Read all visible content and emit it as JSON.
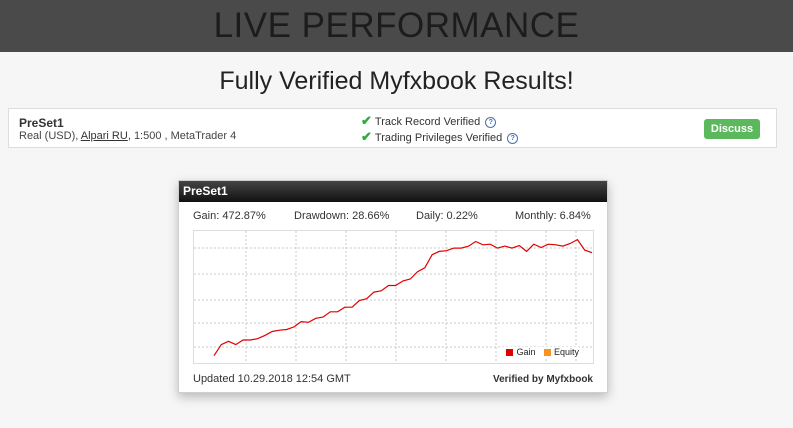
{
  "header": {
    "title": "LIVE PERFORMANCE"
  },
  "subtitle": "Fully Verified Myfxbook Results!",
  "account": {
    "name": "PreSet1",
    "type": "Real (USD),",
    "broker": "Alpari RU",
    "leverage_platform": ", 1:500 , MetaTrader 4",
    "verifications": [
      "Track Record Verified",
      "Trading Privileges Verified"
    ],
    "discuss_label": "Discuss",
    "check_icon": "check-icon",
    "help_icon": "help-icon"
  },
  "widget": {
    "title": "PreSet1",
    "stats": {
      "gain": "Gain: 472.87%",
      "drawdown": "Drawdown: 28.66%",
      "daily": "Daily: 0.22%",
      "monthly": "Monthly: 6.84%"
    },
    "updated": "Updated 10.29.2018 12:54 GMT",
    "verified_by": "Verified by Myfxbook"
  },
  "chart_data": {
    "type": "line",
    "series": [
      {
        "name": "Gain",
        "color": "#e10000",
        "values": [
          8,
          28,
          30,
          28,
          32,
          35,
          34,
          42,
          45,
          50,
          48,
          55,
          60,
          62,
          65,
          70,
          75,
          78,
          82,
          85,
          92,
          98,
          105,
          110,
          115,
          118,
          122,
          128,
          136,
          145,
          162,
          170,
          168,
          175,
          172,
          178,
          182,
          180,
          178,
          175,
          175,
          175,
          176,
          170,
          178,
          176,
          178,
          180,
          175,
          182,
          185,
          172,
          165
        ]
      },
      {
        "name": "Equity",
        "color": "#f7931e",
        "values": []
      }
    ],
    "legend": "bottom-right",
    "grid": true
  }
}
